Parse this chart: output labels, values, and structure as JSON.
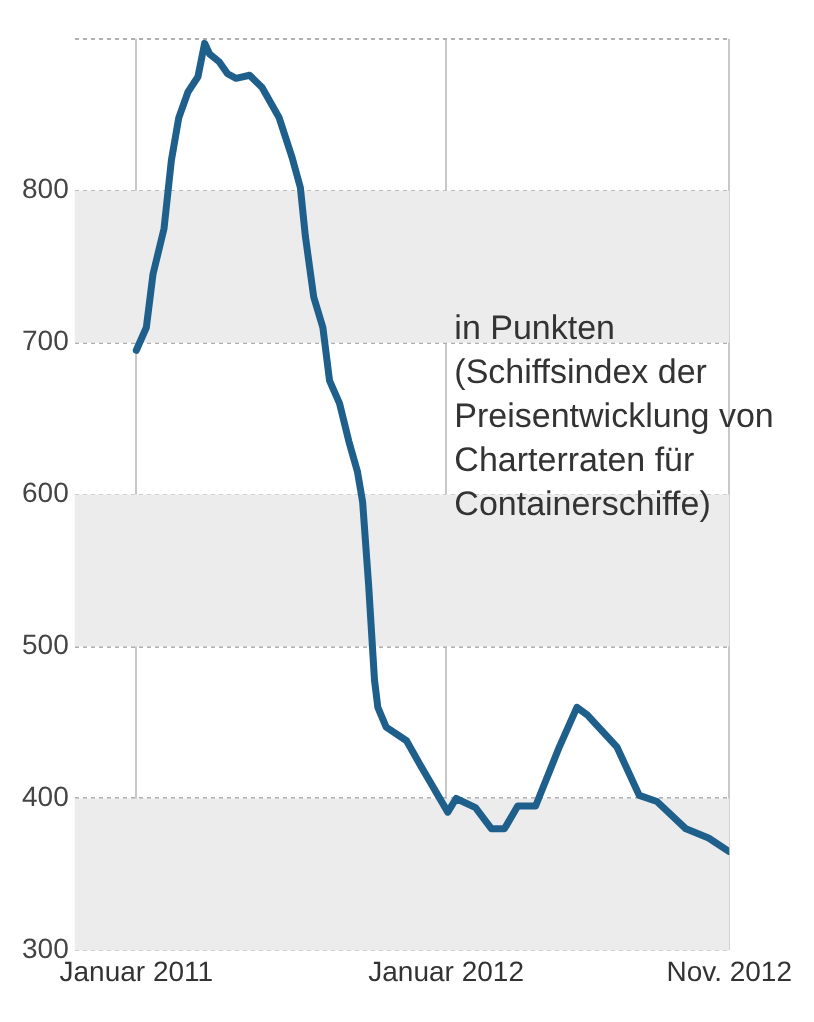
{
  "chart_data": {
    "type": "line",
    "annotations": [
      "in Punkten (Schiffsindex der Preisentwicklung von Charterraten für Containerschiffe)"
    ],
    "x": [
      "2011-01-01",
      "2011-01-13",
      "2011-01-21",
      "2011-02-03",
      "2011-02-11",
      "2011-02-19",
      "2011-03-01",
      "2011-03-13",
      "2011-03-21",
      "2011-03-27",
      "2011-04-07",
      "2011-04-17",
      "2011-04-27",
      "2011-05-13",
      "2011-05-28",
      "2011-06-17",
      "2011-07-02",
      "2011-07-12",
      "2011-07-18",
      "2011-07-28",
      "2011-08-08",
      "2011-08-16",
      "2011-08-28",
      "2011-09-08",
      "2011-09-18",
      "2011-09-24",
      "2011-10-01",
      "2011-10-08",
      "2011-10-12",
      "2011-10-22",
      "2011-11-15",
      "2011-12-03",
      "2012-01-03",
      "2012-01-13",
      "2012-02-05",
      "2012-02-23",
      "2012-03-09",
      "2012-03-25",
      "2012-04-15",
      "2012-05-13",
      "2012-06-03",
      "2012-06-15",
      "2012-07-20",
      "2012-08-16",
      "2012-09-06",
      "2012-10-10",
      "2012-11-06",
      "2012-11-30"
    ],
    "series": [
      {
        "color": "#1f5f8c",
        "values": [
          695,
          710,
          745,
          775,
          820,
          848,
          865,
          875,
          897,
          890,
          885,
          877,
          874,
          876,
          868,
          848,
          822,
          802,
          770,
          730,
          710,
          675,
          660,
          635,
          615,
          595,
          540,
          478,
          460,
          447,
          438,
          420,
          391,
          400,
          394,
          380,
          380,
          395,
          395,
          434,
          460,
          455,
          434,
          402,
          398,
          380,
          374,
          365
        ]
      }
    ],
    "xlim": [
      "2010-10-20",
      "2012-11-30"
    ],
    "xticks": [
      {
        "value": "2011-01-01",
        "label": "Januar 2011"
      },
      {
        "value": "2012-01-01",
        "label": "Januar 2012"
      },
      {
        "value": "2012-11-30",
        "label": "Nov. 2012"
      }
    ],
    "ylim": [
      300,
      900
    ],
    "yticks": [
      300,
      400,
      500,
      600,
      700,
      800,
      {
        "value": 900,
        "label": null
      }
    ],
    "bands": [
      {
        "axis": "y",
        "from": 300,
        "to": 400,
        "color": "#ececec"
      },
      {
        "axis": "y",
        "from": 500,
        "to": 600,
        "color": "#ececec"
      },
      {
        "axis": "y",
        "from": 700,
        "to": 800,
        "color": "#ececec"
      }
    ],
    "grid": true,
    "line_style": "solid",
    "marker": "none"
  }
}
